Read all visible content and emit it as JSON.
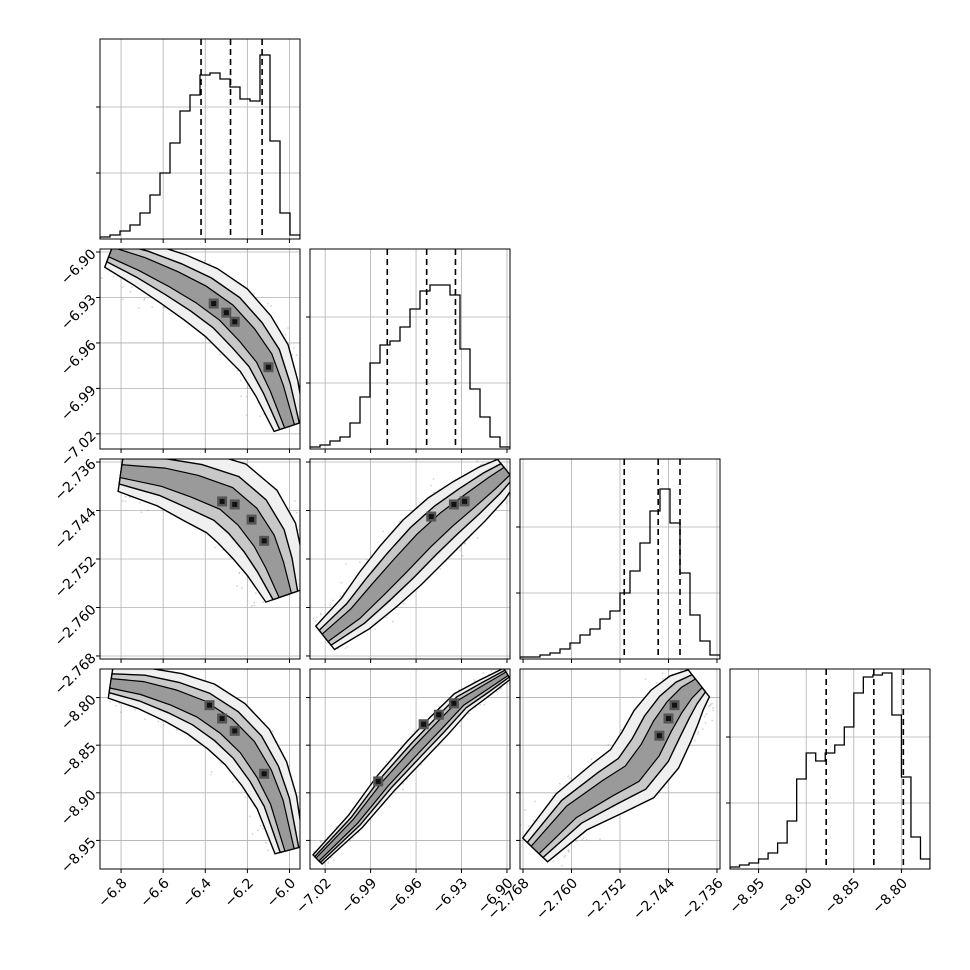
{
  "chart_data": {
    "type": "corner",
    "grid": true,
    "colors": {
      "line": "#000000",
      "grid": "#b0b0b0",
      "density": "#555555"
    },
    "parameters": [
      {
        "range": [
          -6.9,
          -5.95
        ],
        "ticks": [
          "-6.8",
          "-6.6",
          "-6.4",
          "-6.2",
          "-6.0"
        ],
        "tick_values": [
          -6.8,
          -6.6,
          -6.4,
          -6.2,
          -6.0
        ],
        "quantiles": [
          -6.42,
          -6.28,
          -6.13
        ]
      },
      {
        "range": [
          -7.03,
          -6.898
        ],
        "ticks": [
          "-7.02",
          "-6.99",
          "-6.96",
          "-6.93",
          "-6.90"
        ],
        "tick_values": [
          -7.02,
          -6.99,
          -6.96,
          -6.93,
          -6.9
        ],
        "quantiles": [
          -6.979,
          -6.953,
          -6.934
        ]
      },
      {
        "range": [
          -2.7685,
          -2.7355
        ],
        "ticks": [
          "-2.768",
          "-2.760",
          "-2.752",
          "-2.744",
          "-2.736"
        ],
        "tick_values": [
          -2.768,
          -2.76,
          -2.752,
          -2.744,
          -2.736
        ],
        "quantiles": [
          -2.7513,
          -2.7457,
          -2.7421
        ]
      },
      {
        "range": [
          -8.98,
          -8.77
        ],
        "ticks": [
          "-8.95",
          "-8.90",
          "-8.85",
          "-8.80"
        ],
        "tick_values": [
          -8.95,
          -8.9,
          -8.85,
          -8.8
        ],
        "quantiles": [
          -8.879,
          -8.829,
          -8.798
        ]
      }
    ],
    "histograms": [
      {
        "heights": [
          0.01,
          0.02,
          0.04,
          0.07,
          0.13,
          0.22,
          0.33,
          0.48,
          0.64,
          0.72,
          0.82,
          0.83,
          0.8,
          0.76,
          0.7,
          0.69,
          0.92,
          0.49,
          0.13,
          0.02
        ]
      },
      {
        "heights": [
          0.01,
          0.02,
          0.04,
          0.06,
          0.13,
          0.26,
          0.43,
          0.52,
          0.54,
          0.61,
          0.7,
          0.79,
          0.82,
          0.82,
          0.77,
          0.5,
          0.3,
          0.16,
          0.06,
          0.01
        ]
      },
      {
        "heights": [
          0.01,
          0.01,
          0.02,
          0.03,
          0.05,
          0.08,
          0.12,
          0.15,
          0.2,
          0.24,
          0.33,
          0.44,
          0.58,
          0.74,
          0.85,
          0.68,
          0.43,
          0.22,
          0.09,
          0.02
        ]
      },
      {
        "heights": [
          0.01,
          0.02,
          0.03,
          0.05,
          0.08,
          0.13,
          0.24,
          0.45,
          0.58,
          0.54,
          0.58,
          0.62,
          0.71,
          0.88,
          0.96,
          0.97,
          0.98,
          0.77,
          0.46,
          0.16,
          0.05
        ]
      }
    ],
    "pairs": [
      {
        "row": 1,
        "col": 0,
        "path": [
          [
            -6.85,
            -6.9
          ],
          [
            -6.7,
            -6.908
          ],
          [
            -6.55,
            -6.918
          ],
          [
            -6.42,
            -6.928
          ],
          [
            -6.3,
            -6.94
          ],
          [
            -6.2,
            -6.955
          ],
          [
            -6.12,
            -6.97
          ],
          [
            -6.06,
            -6.99
          ],
          [
            -6.0,
            -7.015
          ]
        ],
        "width": 0.0095,
        "density": [
          [
            -6.36,
            -6.934
          ],
          [
            -6.3,
            -6.94
          ],
          [
            -6.26,
            -6.946
          ],
          [
            -6.1,
            -6.976
          ]
        ]
      },
      {
        "row": 2,
        "col": 0,
        "path": [
          [
            -6.8,
            -2.7375
          ],
          [
            -6.6,
            -2.7385
          ],
          [
            -6.45,
            -2.74
          ],
          [
            -6.3,
            -2.742
          ],
          [
            -6.2,
            -2.745
          ],
          [
            -6.12,
            -2.749
          ],
          [
            -6.07,
            -2.753
          ],
          [
            -6.02,
            -2.758
          ]
        ],
        "width": 0.003,
        "density": [
          [
            -6.32,
            -2.7425
          ],
          [
            -6.26,
            -2.743
          ],
          [
            -6.18,
            -2.7455
          ],
          [
            -6.12,
            -2.749
          ]
        ]
      },
      {
        "row": 2,
        "col": 1,
        "path": [
          [
            -7.02,
            -2.765
          ],
          [
            -7.0,
            -2.761
          ],
          [
            -6.985,
            -2.757
          ],
          [
            -6.97,
            -2.753
          ],
          [
            -6.955,
            -2.749
          ],
          [
            -6.94,
            -2.7455
          ],
          [
            -6.925,
            -2.7425
          ],
          [
            -6.91,
            -2.7395
          ],
          [
            -6.9,
            -2.7375
          ]
        ],
        "width": 0.0022,
        "density": [
          [
            -6.95,
            -2.745
          ],
          [
            -6.935,
            -2.743
          ],
          [
            -6.928,
            -2.7425
          ]
        ]
      },
      {
        "row": 3,
        "col": 0,
        "path": [
          [
            -6.85,
            -8.785
          ],
          [
            -6.7,
            -8.79
          ],
          [
            -6.55,
            -8.8
          ],
          [
            -6.42,
            -8.812
          ],
          [
            -6.3,
            -8.83
          ],
          [
            -6.2,
            -8.852
          ],
          [
            -6.12,
            -8.88
          ],
          [
            -6.06,
            -8.91
          ],
          [
            -6.0,
            -8.96
          ]
        ],
        "width": 0.014,
        "density": [
          [
            -6.38,
            -8.808
          ],
          [
            -6.32,
            -8.822
          ],
          [
            -6.26,
            -8.835
          ],
          [
            -6.12,
            -8.88
          ]
        ]
      },
      {
        "row": 3,
        "col": 1,
        "path": [
          [
            -7.025,
            -8.97
          ],
          [
            -7.0,
            -8.93
          ],
          [
            -6.98,
            -8.89
          ],
          [
            -6.96,
            -8.855
          ],
          [
            -6.945,
            -8.83
          ],
          [
            -6.93,
            -8.805
          ],
          [
            -6.915,
            -8.79
          ],
          [
            -6.9,
            -8.775
          ]
        ],
        "width": 0.006,
        "density": [
          [
            -6.955,
            -8.828
          ],
          [
            -6.945,
            -8.818
          ],
          [
            -6.935,
            -8.806
          ],
          [
            -6.985,
            -8.888
          ]
        ]
      },
      {
        "row": 3,
        "col": 2,
        "path": [
          [
            -2.766,
            -8.96
          ],
          [
            -2.76,
            -8.92
          ],
          [
            -2.754,
            -8.895
          ],
          [
            -2.75,
            -8.88
          ],
          [
            -2.747,
            -8.855
          ],
          [
            -2.745,
            -8.83
          ],
          [
            -2.743,
            -8.81
          ],
          [
            -2.741,
            -8.795
          ],
          [
            -2.739,
            -8.785
          ]
        ],
        "width": 0.016,
        "density": [
          [
            -2.7455,
            -8.84
          ],
          [
            -2.744,
            -8.822
          ],
          [
            -2.743,
            -8.808
          ]
        ]
      }
    ]
  }
}
